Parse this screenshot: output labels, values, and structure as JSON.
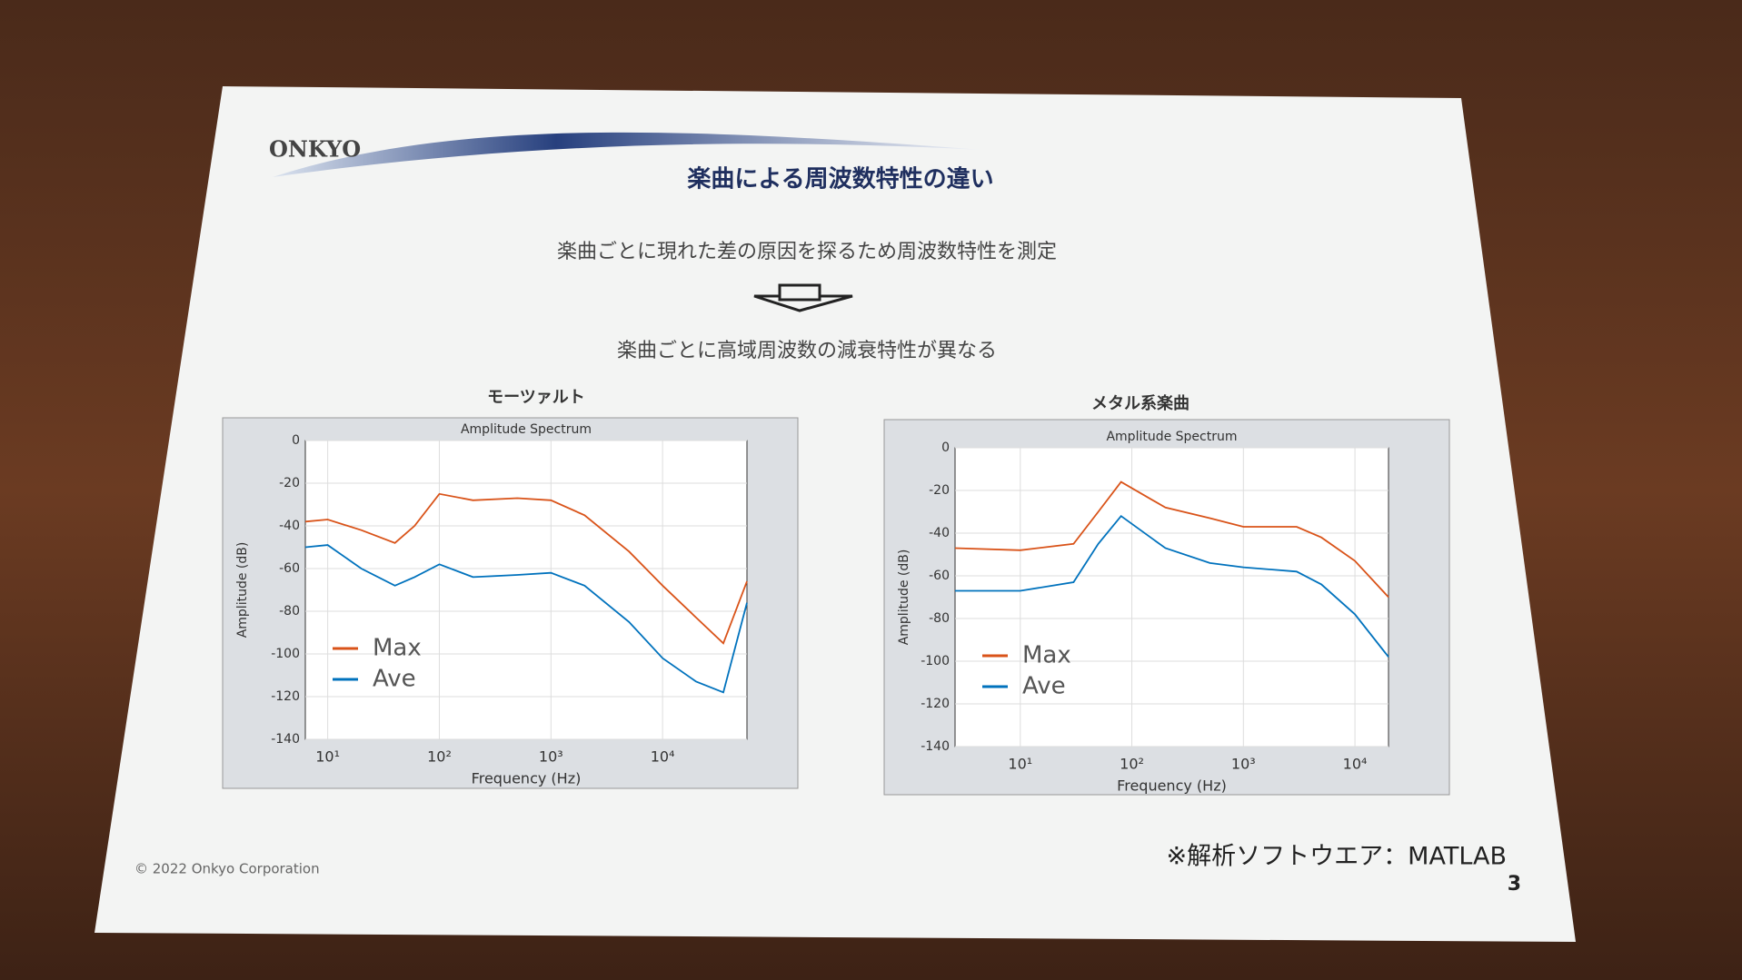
{
  "slide": {
    "logo": "ONKYO",
    "title": "楽曲による周波数特性の違い",
    "line1": "楽曲ごとに現れた差の原因を探るため周波数特性を測定",
    "line2": "楽曲ごとに高域周波数の減衰特性が異なる",
    "chart_headings": [
      "モーツァルト",
      "メタル系楽曲"
    ],
    "copyright": "© 2022 Onkyo Corporation",
    "note": "※解析ソフトウエア：MATLAB",
    "page_number": "3"
  },
  "chart_data": [
    {
      "type": "line",
      "title": "Amplitude Spectrum",
      "x_label": "Frequency (Hz)",
      "y_label": "Amplitude (dB)",
      "xscale": "log",
      "grid": true,
      "legend": "lower left",
      "xlim": [
        6.3,
        57000
      ],
      "ylim": [
        -140,
        0
      ],
      "xticks": [
        {
          "value": 10,
          "label": "10¹"
        },
        {
          "value": 100,
          "label": "10²"
        },
        {
          "value": 1000,
          "label": "10³"
        },
        {
          "value": 10000,
          "label": "10⁴"
        }
      ],
      "yticks": [
        0,
        -20,
        -40,
        -60,
        -80,
        -100,
        -120,
        -140
      ],
      "x": [
        6.3,
        10,
        20,
        40,
        60,
        100,
        200,
        500,
        1000,
        2000,
        5000,
        10000,
        20000,
        35000,
        57000
      ],
      "series": [
        {
          "name": "Max",
          "color": "#d95319",
          "values": [
            -38,
            -37,
            -42,
            -48,
            -40,
            -25,
            -28,
            -27,
            -28,
            -35,
            -52,
            -68,
            -83,
            -95,
            -66
          ]
        },
        {
          "name": "Ave",
          "color": "#0072bd",
          "values": [
            -50,
            -49,
            -60,
            -68,
            -64,
            -58,
            -64,
            -63,
            -62,
            -68,
            -85,
            -102,
            -113,
            -118,
            -76
          ]
        }
      ]
    },
    {
      "type": "line",
      "title": "Amplitude Spectrum",
      "x_label": "Frequency (Hz)",
      "y_label": "Amplitude (dB)",
      "xscale": "log",
      "grid": true,
      "legend": "lower left",
      "xlim": [
        2.6,
        20000
      ],
      "ylim": [
        -140,
        0
      ],
      "xticks": [
        {
          "value": 10,
          "label": "10¹"
        },
        {
          "value": 100,
          "label": "10²"
        },
        {
          "value": 1000,
          "label": "10³"
        },
        {
          "value": 10000,
          "label": "10⁴"
        }
      ],
      "yticks": [
        0,
        -20,
        -40,
        -60,
        -80,
        -100,
        -120,
        -140
      ],
      "x": [
        2.6,
        10,
        30,
        50,
        80,
        200,
        500,
        1000,
        3000,
        5000,
        10000,
        20000
      ],
      "series": [
        {
          "name": "Max",
          "color": "#d95319",
          "values": [
            -47,
            -48,
            -45,
            -30,
            -16,
            -28,
            -33,
            -37,
            -37,
            -42,
            -53,
            -70
          ]
        },
        {
          "name": "Ave",
          "color": "#0072bd",
          "values": [
            -67,
            -67,
            -63,
            -45,
            -32,
            -47,
            -54,
            -56,
            -58,
            -64,
            -78,
            -98
          ]
        }
      ]
    }
  ]
}
